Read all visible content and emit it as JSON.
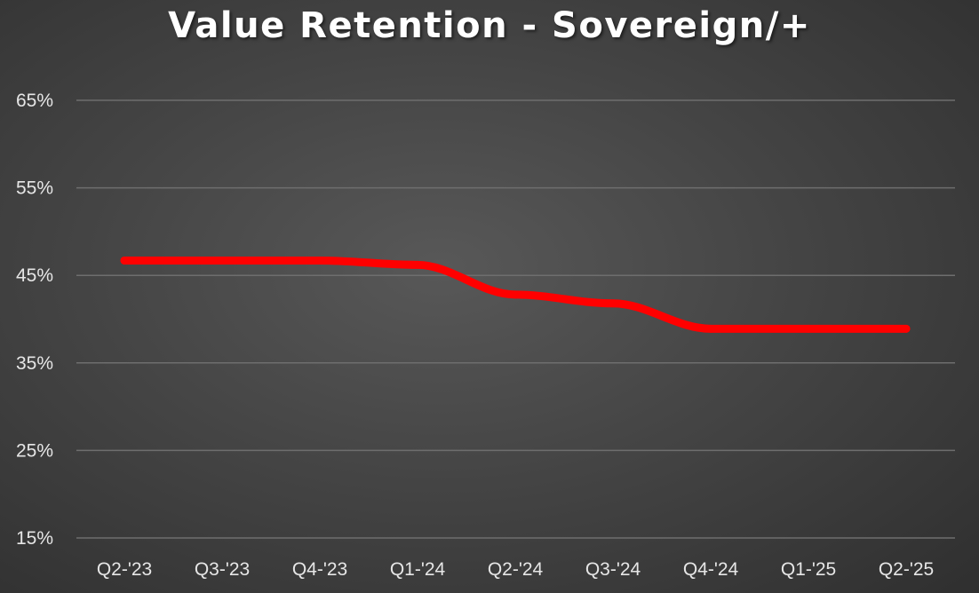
{
  "chart_data": {
    "type": "line",
    "title": "Value Retention - Sovereign/+",
    "xlabel": "",
    "ylabel": "",
    "categories": [
      "Q2-'23",
      "Q3-'23",
      "Q4-'23",
      "Q1-'24",
      "Q2-'24",
      "Q3-'24",
      "Q4-'24",
      "Q1-'25",
      "Q2-'25"
    ],
    "series": [
      {
        "values": [
          46.7,
          46.7,
          46.7,
          46.2,
          42.8,
          41.8,
          38.9,
          38.9,
          38.9
        ]
      }
    ],
    "ylim": [
      15,
      65
    ],
    "yticks": [
      15,
      25,
      35,
      45,
      55,
      65
    ],
    "ytick_labels": [
      "15%",
      "25%",
      "35%",
      "45%",
      "55%",
      "65%"
    ],
    "grid": true,
    "legend": "none",
    "colors": {
      "line": "#ff0000",
      "gridline": "#6e6e6e",
      "text": "#e6e6e6",
      "title": "#ffffff"
    }
  }
}
